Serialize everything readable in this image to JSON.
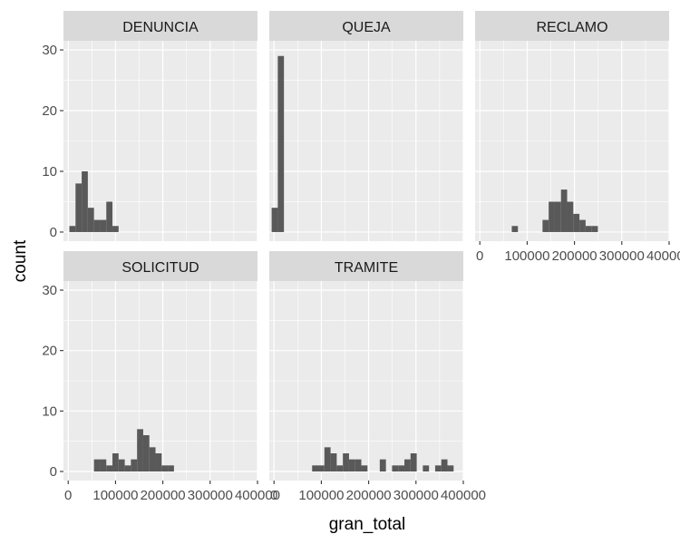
{
  "chart_data": {
    "type": "bar",
    "chart_kind": "faceted-histogram",
    "xlabel": "gran_total",
    "ylabel": "count",
    "xlim": [
      -10000,
      400000
    ],
    "ylim": [
      -1.5,
      31.5
    ],
    "x_ticks": [
      0,
      100000,
      200000,
      300000,
      400000
    ],
    "x_tick_labels": [
      "0",
      "100000",
      "200000",
      "300000",
      "400000"
    ],
    "y_ticks": [
      0,
      10,
      20,
      30
    ],
    "y_tick_labels": [
      "0",
      "10",
      "20",
      "30"
    ],
    "bar_color": "#595959",
    "panel_background": "#ebebeb",
    "strip_background": "#d9d9d9",
    "grid": true,
    "facets": [
      {
        "name": "DENUNCIA",
        "bins": [
          {
            "x0": 2500,
            "x1": 15500,
            "count": 1
          },
          {
            "x0": 15500,
            "x1": 28500,
            "count": 8
          },
          {
            "x0": 28500,
            "x1": 41500,
            "count": 10
          },
          {
            "x0": 41500,
            "x1": 54500,
            "count": 4
          },
          {
            "x0": 54500,
            "x1": 67500,
            "count": 2
          },
          {
            "x0": 67500,
            "x1": 80500,
            "count": 2
          },
          {
            "x0": 80500,
            "x1": 93500,
            "count": 5
          },
          {
            "x0": 93500,
            "x1": 106500,
            "count": 1
          }
        ]
      },
      {
        "name": "QUEJA",
        "bins": [
          {
            "x0": -5000,
            "x1": 8000,
            "count": 4
          },
          {
            "x0": 8000,
            "x1": 21000,
            "count": 29
          }
        ]
      },
      {
        "name": "RECLAMO",
        "bins": [
          {
            "x0": 67500,
            "x1": 80500,
            "count": 1
          },
          {
            "x0": 132500,
            "x1": 145500,
            "count": 2
          },
          {
            "x0": 145500,
            "x1": 158500,
            "count": 5
          },
          {
            "x0": 158500,
            "x1": 171500,
            "count": 5
          },
          {
            "x0": 171500,
            "x1": 184500,
            "count": 7
          },
          {
            "x0": 184500,
            "x1": 197500,
            "count": 5
          },
          {
            "x0": 197500,
            "x1": 210500,
            "count": 3
          },
          {
            "x0": 210500,
            "x1": 223500,
            "count": 2
          },
          {
            "x0": 223500,
            "x1": 236500,
            "count": 1
          },
          {
            "x0": 236500,
            "x1": 249500,
            "count": 1
          }
        ]
      },
      {
        "name": "SOLICITUD",
        "bins": [
          {
            "x0": 54500,
            "x1": 67500,
            "count": 2
          },
          {
            "x0": 67500,
            "x1": 80500,
            "count": 2
          },
          {
            "x0": 80500,
            "x1": 93500,
            "count": 1
          },
          {
            "x0": 93500,
            "x1": 106500,
            "count": 3
          },
          {
            "x0": 106500,
            "x1": 119500,
            "count": 2
          },
          {
            "x0": 119500,
            "x1": 132500,
            "count": 1
          },
          {
            "x0": 132500,
            "x1": 145500,
            "count": 2
          },
          {
            "x0": 145500,
            "x1": 158500,
            "count": 7
          },
          {
            "x0": 158500,
            "x1": 171500,
            "count": 6
          },
          {
            "x0": 171500,
            "x1": 184500,
            "count": 4
          },
          {
            "x0": 184500,
            "x1": 197500,
            "count": 3
          },
          {
            "x0": 197500,
            "x1": 210500,
            "count": 1
          },
          {
            "x0": 210500,
            "x1": 223500,
            "count": 1
          }
        ]
      },
      {
        "name": "TRAMITE",
        "bins": [
          {
            "x0": 80500,
            "x1": 93500,
            "count": 1
          },
          {
            "x0": 93500,
            "x1": 106500,
            "count": 1
          },
          {
            "x0": 106500,
            "x1": 119500,
            "count": 4
          },
          {
            "x0": 119500,
            "x1": 132500,
            "count": 3
          },
          {
            "x0": 132500,
            "x1": 145500,
            "count": 1
          },
          {
            "x0": 145500,
            "x1": 158500,
            "count": 3
          },
          {
            "x0": 158500,
            "x1": 171500,
            "count": 2
          },
          {
            "x0": 171500,
            "x1": 184500,
            "count": 2
          },
          {
            "x0": 184500,
            "x1": 197500,
            "count": 1
          },
          {
            "x0": 223500,
            "x1": 236500,
            "count": 2
          },
          {
            "x0": 249500,
            "x1": 262500,
            "count": 1
          },
          {
            "x0": 262500,
            "x1": 275500,
            "count": 1
          },
          {
            "x0": 275500,
            "x1": 288500,
            "count": 2
          },
          {
            "x0": 288500,
            "x1": 301500,
            "count": 3
          },
          {
            "x0": 314500,
            "x1": 327500,
            "count": 1
          },
          {
            "x0": 340500,
            "x1": 353500,
            "count": 1
          },
          {
            "x0": 353500,
            "x1": 366500,
            "count": 2
          },
          {
            "x0": 366500,
            "x1": 379500,
            "count": 1
          }
        ]
      }
    ]
  }
}
